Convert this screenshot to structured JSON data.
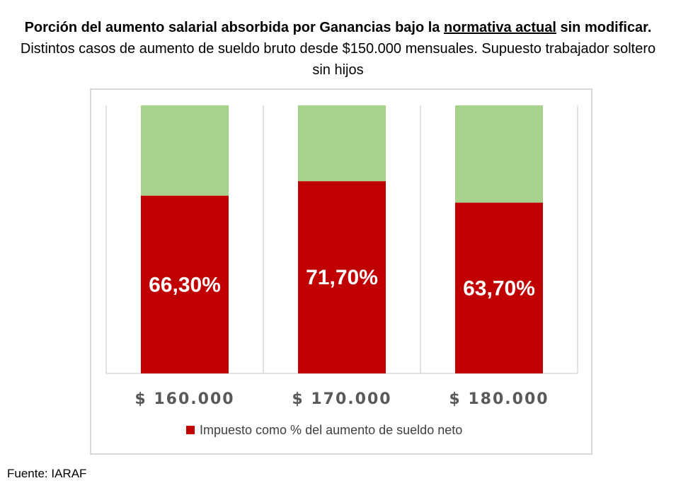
{
  "title": {
    "bold_part1": "Porción del aumento salarial absorbida por Ganancias bajo la ",
    "bold_underlined": "normativa actual",
    "bold_part2": " sin modificar.",
    "normal": " Distintos casos de aumento de sueldo bruto desde $150.000 mensuales. Supuesto trabajador soltero sin hijos"
  },
  "source": "Fuente: IARAF",
  "colors": {
    "tax": "#c00000",
    "rest": "#a9d18e",
    "axis_text": "#595959",
    "grid": "#d9d9d9"
  },
  "chart_data": {
    "type": "bar",
    "stacked": true,
    "categories": [
      "$ 160.000",
      "$ 170.000",
      "$ 180.000"
    ],
    "series": [
      {
        "name": "Impuesto como % del aumento de sueldo neto",
        "values": [
          66.3,
          71.7,
          63.7
        ],
        "labels": [
          "66,30%",
          "71,70%",
          "63,70%"
        ]
      },
      {
        "values": [
          33.7,
          28.3,
          36.3
        ]
      }
    ],
    "ylim": [
      0,
      100
    ],
    "legend_position": "bottom"
  }
}
